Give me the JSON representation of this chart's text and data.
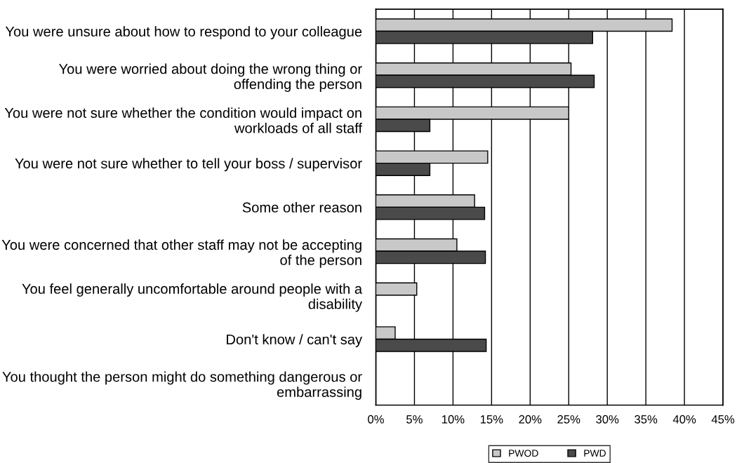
{
  "chart_data": {
    "type": "bar",
    "orientation": "horizontal",
    "categories": [
      "You were unsure about how to respond to your colleague",
      "You were worried about doing the wrong thing or offending the person",
      "You were not sure whether the condition would impact on workloads of all staff",
      "You were not sure whether to tell your boss / supervisor",
      "Some other reason",
      "You were concerned that other staff may not be accepting of the person",
      "You feel generally uncomfortable around people with a disability",
      "Don't know / can't say",
      "You thought the person might do something dangerous or embarrassing"
    ],
    "series": [
      {
        "name": "PWOD",
        "color": "#c8c8c8",
        "values": [
          38.4,
          25.3,
          25.0,
          14.5,
          12.8,
          10.5,
          5.3,
          2.5,
          null
        ]
      },
      {
        "name": "PWD",
        "color": "#4a4a4a",
        "values": [
          28.1,
          28.3,
          7.0,
          7.0,
          14.1,
          14.2,
          null,
          14.3,
          null
        ]
      }
    ],
    "xlim": [
      0,
      45
    ],
    "xticks": [
      {
        "value": 0,
        "label": "0%"
      },
      {
        "value": 5,
        "label": "5%"
      },
      {
        "value": 10,
        "label": "10%"
      },
      {
        "value": 15,
        "label": "15%"
      },
      {
        "value": 20,
        "label": "20%"
      },
      {
        "value": 25,
        "label": "25%"
      },
      {
        "value": 30,
        "label": "30%"
      },
      {
        "value": 35,
        "label": "35%"
      },
      {
        "value": 40,
        "label": "40%"
      },
      {
        "value": 45,
        "label": "45%"
      }
    ],
    "grid": "x",
    "legend": "bottom"
  }
}
